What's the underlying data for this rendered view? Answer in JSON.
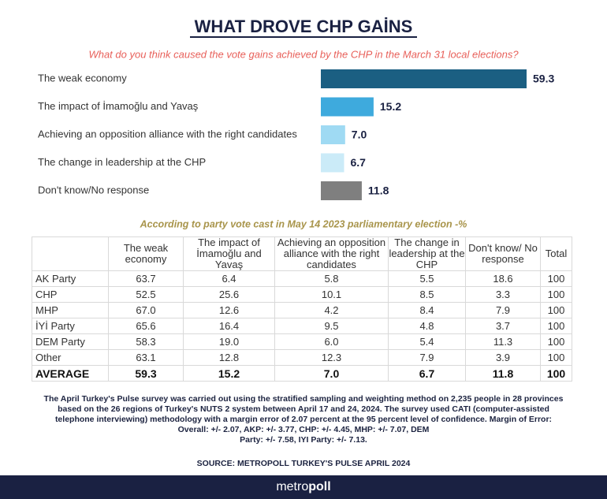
{
  "chart_data": {
    "type": "bar",
    "title": "WHAT DROVE CHP GAİNS",
    "subtitle": "What do you think caused the vote gains achieved by the CHP in the March 31 local elections?",
    "categories": [
      "The weak economy",
      "The impact of İmamoğlu and Yavaş",
      "Achieving an opposition alliance with the right candidates",
      "The change in leadership at the CHP",
      "Don't know/No response"
    ],
    "values": [
      59.3,
      15.2,
      7.0,
      6.7,
      11.8
    ],
    "value_labels": [
      "59.3",
      "15.2",
      "7.0",
      "6.7",
      "11.8"
    ],
    "colors": [
      "#1b5f82",
      "#3eaadd",
      "#9fdaf3",
      "#cbebf8",
      "#7f7f7f"
    ]
  },
  "table": {
    "title": "According to party vote cast in May 14 2023 parliamentary election -%",
    "header": [
      "",
      "The weak economy",
      "The impact of İmamoğlu and Yavaş",
      "Achieving an opposition alliance with the right candidates",
      "The change in leadership at the CHP",
      "Don't know/ No response",
      "Total"
    ],
    "rows": [
      [
        "AK Party",
        "63.7",
        "6.4",
        "5.8",
        "5.5",
        "18.6",
        "100"
      ],
      [
        "CHP",
        "52.5",
        "25.6",
        "10.1",
        "8.5",
        "3.3",
        "100"
      ],
      [
        "MHP",
        "67.0",
        "12.6",
        "4.2",
        "8.4",
        "7.9",
        "100"
      ],
      [
        "İYİ Party",
        "65.6",
        "16.4",
        "9.5",
        "4.8",
        "3.7",
        "100"
      ],
      [
        "DEM Party",
        "58.3",
        "19.0",
        "6.0",
        "5.4",
        "11.3",
        "100"
      ],
      [
        "Other",
        "63.1",
        "12.8",
        "12.3",
        "7.9",
        "3.9",
        "100"
      ],
      [
        "AVERAGE",
        "59.3",
        "15.2",
        "7.0",
        "6.7",
        "11.8",
        "100"
      ]
    ]
  },
  "notes": [
    "The April Turkey's Pulse survey was carried out using the stratified sampling and weighting method on 2,235 people in 28 provinces",
    "based on the 26 regions of Turkey's NUTS 2 system between April 17 and 24, 2024. The survey used CATI (computer-assisted",
    "telephone interviewing) methodology with a margin error of 2.07 percent at the 95 percent level of confidence. Margin of Error:",
    "Overall: +/- 2.07, AKP: +/- 3.77, CHP: +/- 4.45, MHP: +/- 7.07, DEM",
    "Party: +/- 7.58, IYI Party: +/- 7.13."
  ],
  "source": "SOURCE: METROPOLL TURKEY'S PULSE APRIL 2024",
  "brand": [
    "metro",
    "poll"
  ]
}
